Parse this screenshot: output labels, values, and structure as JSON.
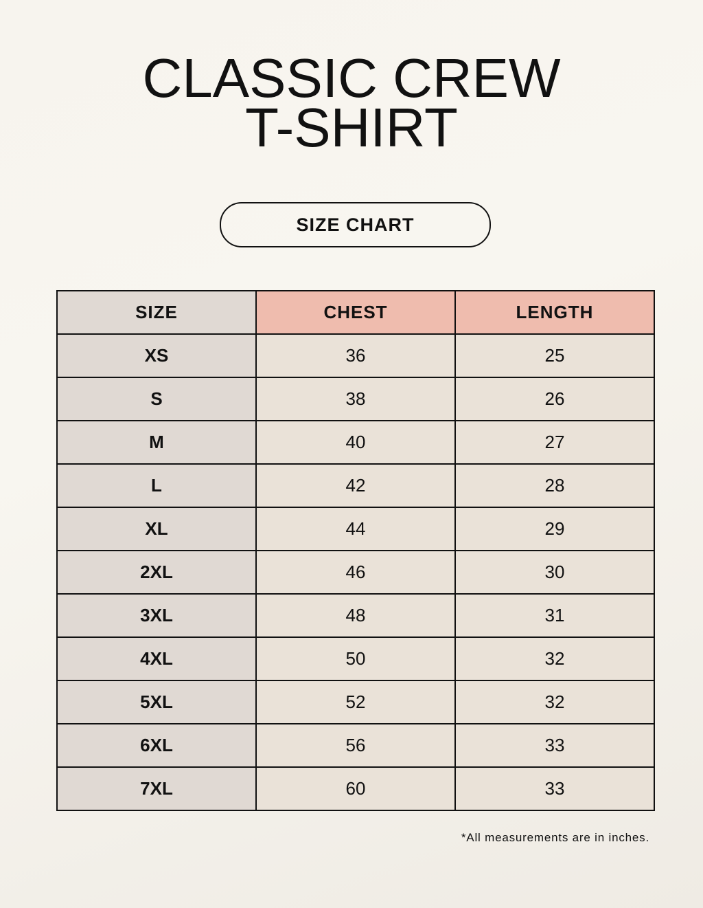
{
  "title_line1": "CLASSIC CREW",
  "title_line2": "T-SHIRT",
  "badge": "SIZE CHART",
  "table": {
    "headers": [
      "SIZE",
      "CHEST",
      "LENGTH"
    ],
    "rows": [
      [
        "XS",
        "36",
        "25"
      ],
      [
        "S",
        "38",
        "26"
      ],
      [
        "M",
        "40",
        "27"
      ],
      [
        "L",
        "42",
        "28"
      ],
      [
        "XL",
        "44",
        "29"
      ],
      [
        "2XL",
        "46",
        "30"
      ],
      [
        "3XL",
        "48",
        "31"
      ],
      [
        "4XL",
        "50",
        "32"
      ],
      [
        "5XL",
        "52",
        "32"
      ],
      [
        "6XL",
        "56",
        "33"
      ],
      [
        "7XL",
        "60",
        "33"
      ]
    ]
  },
  "note": "*All measurements are in inches.",
  "colors": {
    "header_size": "#e0d9d3",
    "header_measure": "#efbcae",
    "cell": "#eae2d8"
  }
}
